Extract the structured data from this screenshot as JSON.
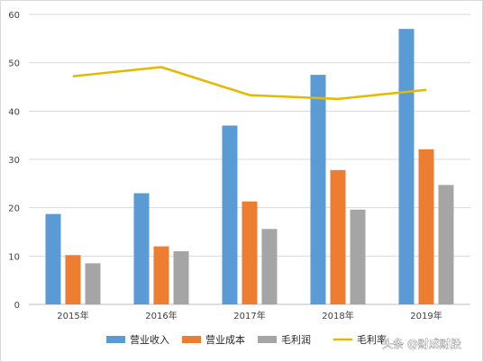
{
  "chart_data": {
    "type": "bar",
    "categories": [
      "2015年",
      "2016年",
      "2017年",
      "2018年",
      "2019年"
    ],
    "series": [
      {
        "name": "营业收入",
        "kind": "bar",
        "color": "#5b9bd5",
        "values": [
          18.7,
          23.0,
          37.0,
          47.5,
          57.0
        ]
      },
      {
        "name": "营业成本",
        "kind": "bar",
        "color": "#ed7d31",
        "values": [
          10.2,
          12.0,
          21.3,
          27.8,
          32.1
        ]
      },
      {
        "name": "毛利润",
        "kind": "bar",
        "color": "#a5a5a5",
        "values": [
          8.5,
          11.0,
          15.6,
          19.6,
          24.7
        ]
      },
      {
        "name": "毛利率",
        "kind": "line",
        "color": "#e6b800",
        "values": [
          47.2,
          49.1,
          43.3,
          42.5,
          44.4
        ]
      }
    ],
    "ylim": [
      0,
      60
    ],
    "yticks": [
      0,
      10,
      20,
      30,
      40,
      50,
      60
    ],
    "grid": true,
    "legend_position": "bottom",
    "title": "",
    "xlabel": "",
    "ylabel": ""
  },
  "watermark": {
    "text": "头条 @财成财股"
  }
}
